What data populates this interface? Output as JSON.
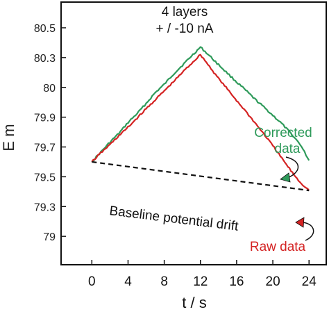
{
  "chart_data": {
    "type": "line",
    "title_lines": [
      "4 layers",
      "+ / -10 nA"
    ],
    "xlabel": "t / s",
    "ylabel": "E m",
    "xlim": [
      -3.4,
      25.9
    ],
    "ylim": [
      0,
      8
    ],
    "x_ticks": [
      0,
      4,
      8,
      12,
      16,
      20,
      24
    ],
    "y_tick_values": [
      1,
      2,
      3,
      4,
      5,
      6,
      7
    ],
    "y_tick_labels": [
      "79",
      "79.3",
      "79.5",
      "79.7",
      "79.9",
      "80",
      "80.3"
    ],
    "top_partial_tick": {
      "value": 8,
      "label": "80.5"
    },
    "series": [
      {
        "name": "Corrected data",
        "color": "#2e9a5a",
        "x": [
          0,
          1,
          2,
          3,
          4,
          5,
          6,
          7,
          8,
          9,
          10,
          11,
          12,
          13,
          14,
          15,
          16,
          17,
          18,
          19,
          20,
          21,
          22,
          23,
          24
        ],
        "y": [
          3.5,
          3.83,
          4.16,
          4.46,
          4.82,
          5.12,
          5.46,
          5.82,
          6.1,
          6.44,
          6.74,
          7.05,
          7.35,
          7.06,
          6.76,
          6.47,
          6.18,
          5.9,
          5.61,
          5.34,
          5.06,
          4.78,
          4.45,
          4.1,
          3.55
        ]
      },
      {
        "name": "Raw data",
        "color": "#d42323",
        "x": [
          0,
          1,
          2,
          3,
          4,
          5,
          6,
          7,
          8,
          9,
          10,
          11,
          12,
          13,
          14,
          15,
          16,
          17,
          18,
          19,
          20,
          21,
          22,
          23,
          24
        ],
        "y": [
          3.5,
          3.8,
          4.08,
          4.38,
          4.66,
          4.97,
          5.28,
          5.58,
          5.88,
          6.18,
          6.5,
          6.8,
          7.1,
          6.7,
          6.3,
          5.93,
          5.56,
          5.2,
          4.82,
          4.44,
          4.04,
          3.62,
          3.2,
          2.82,
          2.54
        ]
      }
    ],
    "baseline": {
      "label": "Baseline potential drift",
      "style": "dashed",
      "color": "#111111",
      "x": [
        0,
        24
      ],
      "y": [
        3.5,
        2.54
      ]
    },
    "annotations": [
      {
        "text_lines": [
          "Corrected",
          "data"
        ],
        "color": "#2e9a5a",
        "points_to": {
          "x": 22.6,
          "y": 4.2
        }
      },
      {
        "text_lines": [
          "Raw data"
        ],
        "color": "#d42323",
        "points_to": {
          "x": 24.2,
          "y": 2.54
        }
      }
    ],
    "grid": false,
    "legend": "none"
  }
}
